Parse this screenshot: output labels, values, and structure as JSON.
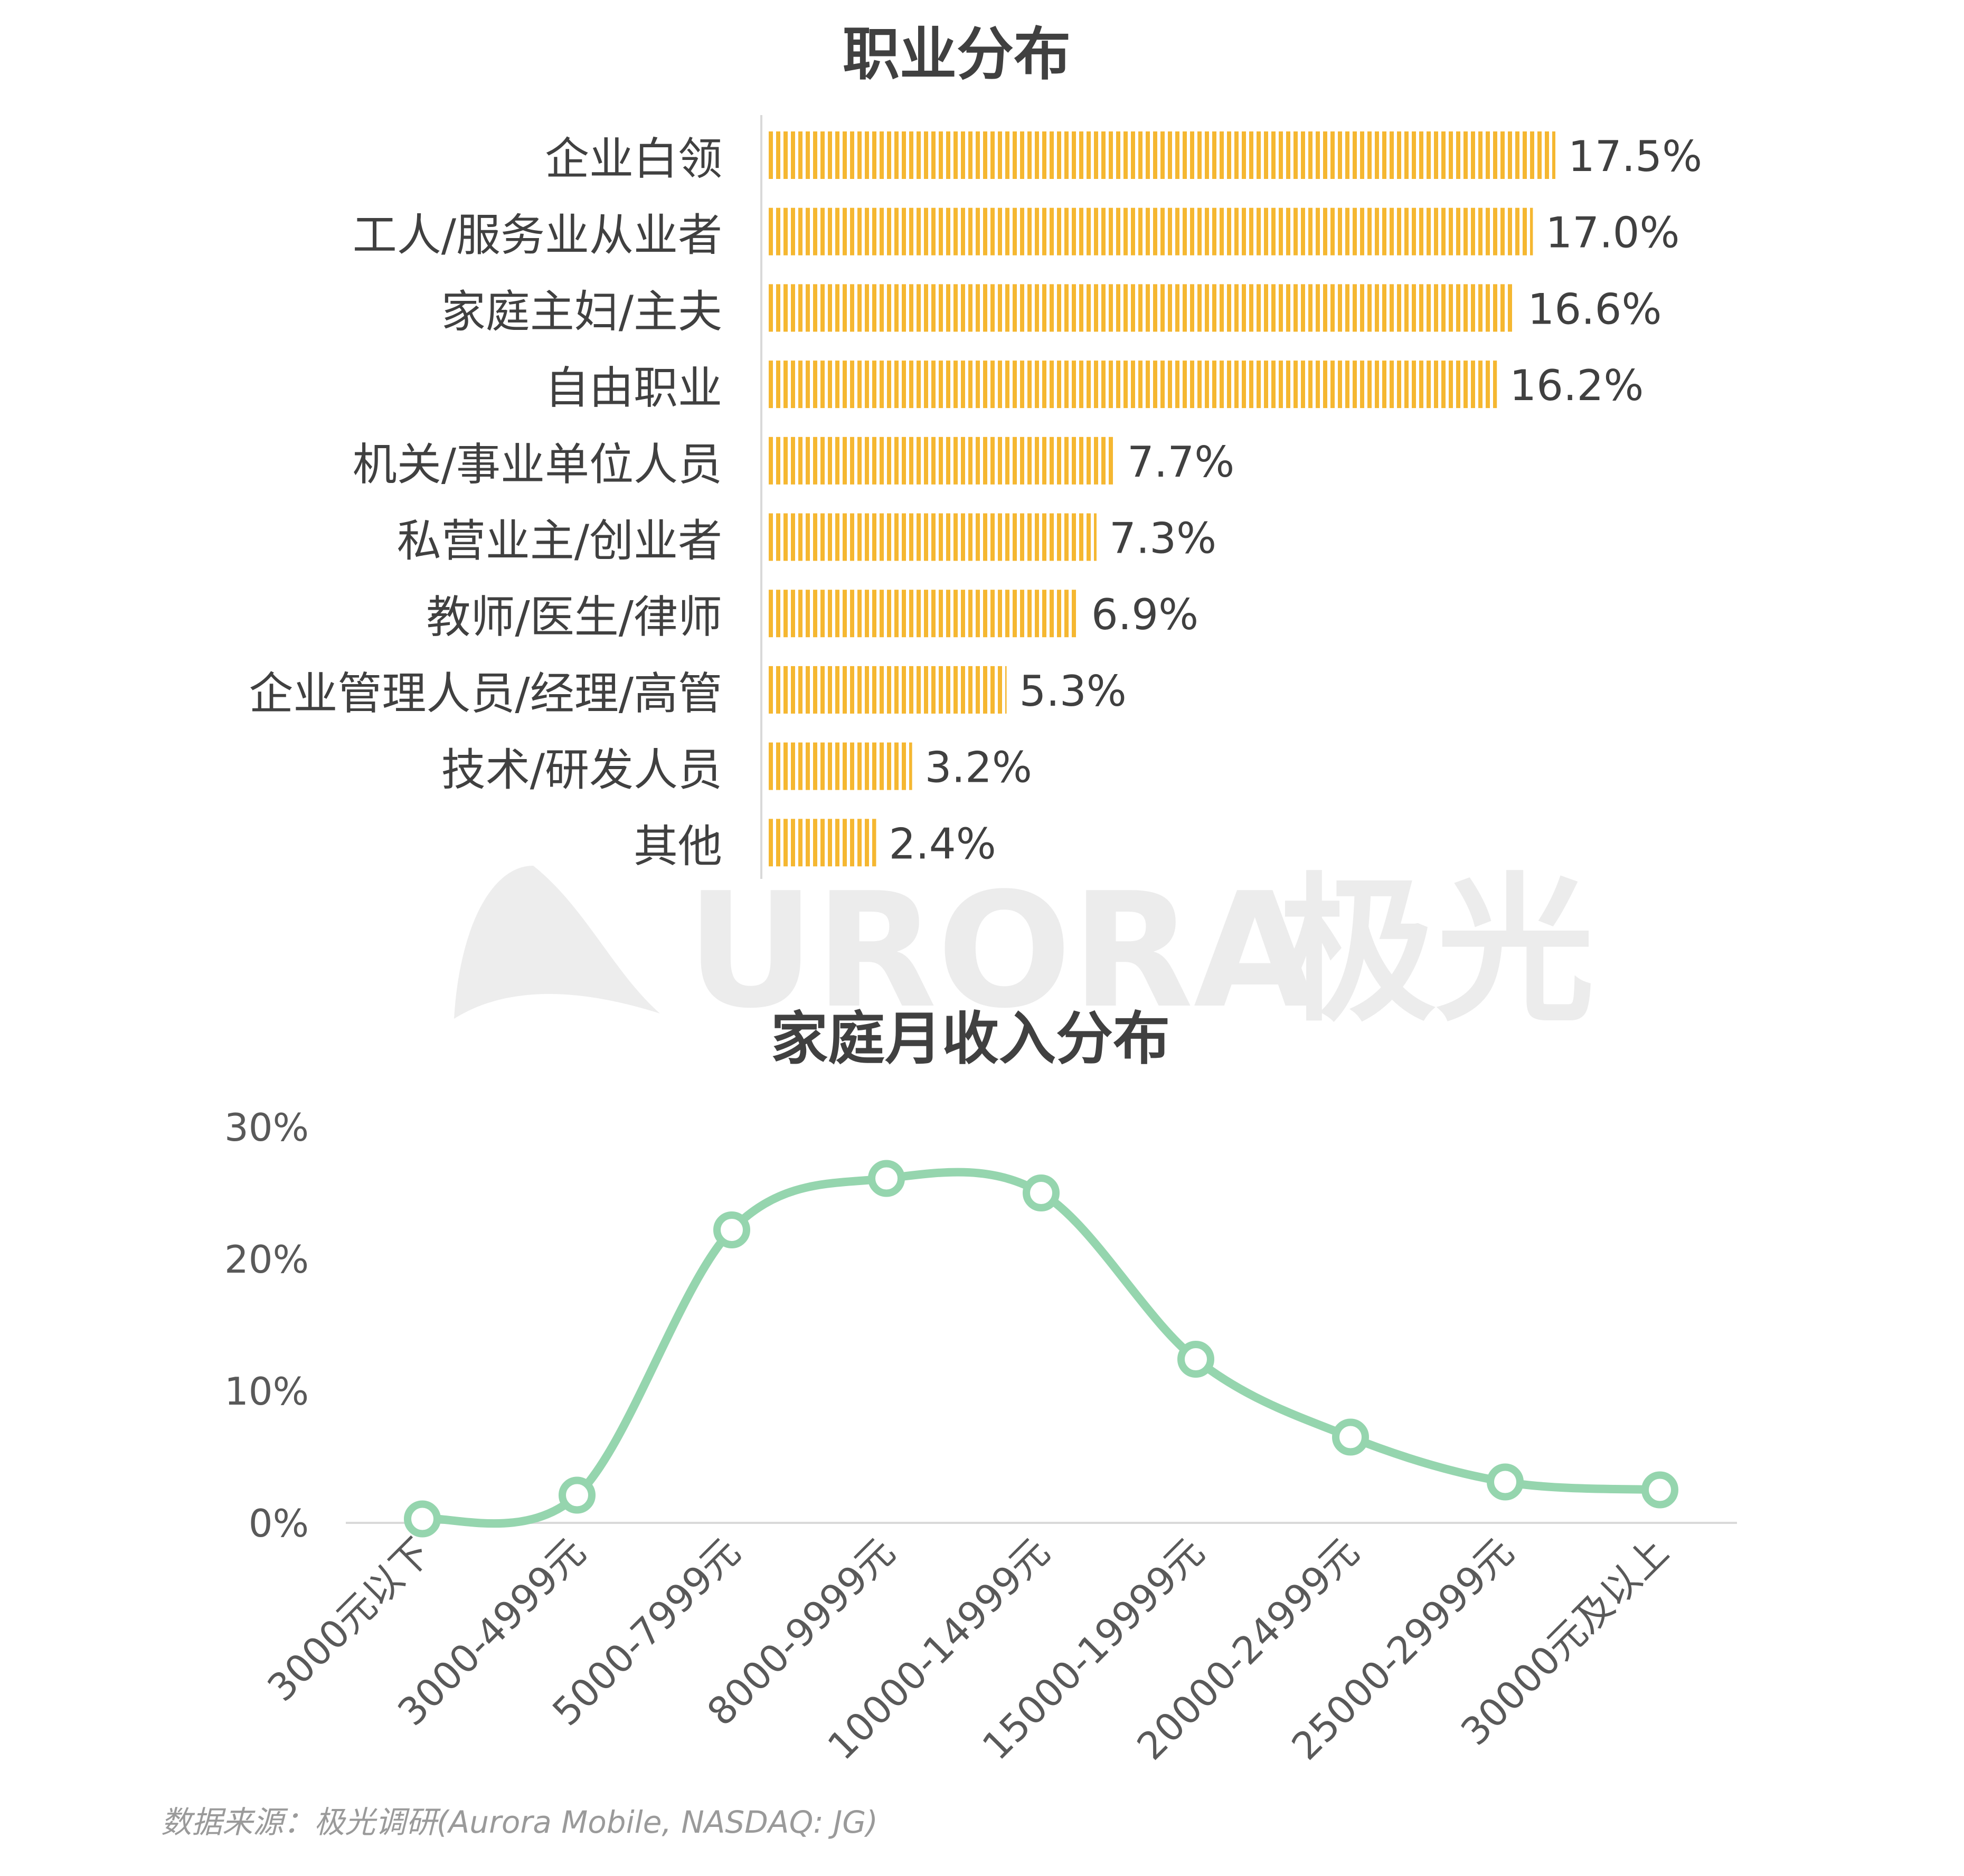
{
  "chart_data": [
    {
      "type": "bar",
      "orientation": "horizontal",
      "title": "职业分布",
      "categories": [
        "企业白领",
        "工人/服务业从业者",
        "家庭主妇/主夫",
        "自由职业",
        "机关/事业单位人员",
        "私营业主/创业者",
        "教师/医生/律师",
        "企业管理人员/经理/高管",
        "技术/研发人员",
        "其他"
      ],
      "values": [
        17.5,
        17.0,
        16.6,
        16.2,
        7.7,
        7.3,
        6.9,
        5.3,
        3.2,
        2.4
      ],
      "value_labels": [
        "17.5%",
        "17.0%",
        "16.6%",
        "16.2%",
        "7.7%",
        "7.3%",
        "6.9%",
        "5.3%",
        "3.2%",
        "2.4%"
      ],
      "unit": "%",
      "bar_color": "#F5B731",
      "xlabel": "",
      "ylabel": ""
    },
    {
      "type": "line",
      "title": "家庭月收入分布",
      "categories": [
        "3000元以下",
        "3000-4999元",
        "5000-7999元",
        "8000-9999元",
        "10000-14999元",
        "15000-19999元",
        "20000-24999元",
        "25000-29999元",
        "30000元及以上"
      ],
      "values": [
        0.3,
        2.1,
        22.2,
        26.1,
        25.0,
        12.4,
        6.5,
        3.1,
        2.5
      ],
      "yticks": [
        "0%",
        "10%",
        "20%",
        "30%"
      ],
      "ylim": [
        0,
        30
      ],
      "line_color": "#95D5AE",
      "smooth": true,
      "xlabel": "",
      "ylabel": ""
    }
  ],
  "watermark": {
    "text": "URORA",
    "cn": "极光"
  },
  "source": "数据来源：极光调研(Aurora Mobile, NASDAQ: JG)"
}
